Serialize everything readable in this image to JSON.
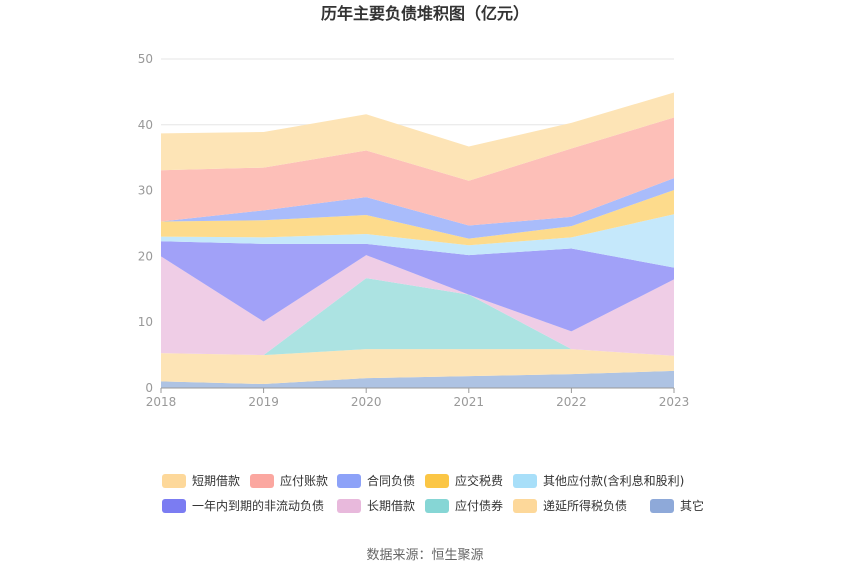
{
  "chart_data": {
    "type": "area",
    "stacked": true,
    "title": "历年主要负债堆积图（亿元）",
    "x": [
      "2018",
      "2019",
      "2020",
      "2021",
      "2022",
      "2023"
    ],
    "ylim": [
      0,
      50
    ],
    "yticks": [
      "0",
      "10",
      "20",
      "30",
      "40",
      "50"
    ],
    "grid": true,
    "legend_position": "bottom",
    "series": [
      {
        "name": "其它",
        "color": "#aec3e3",
        "values": [
          1.0,
          0.6,
          1.5,
          1.8,
          2.1,
          2.6
        ]
      },
      {
        "name": "递延所得税负债",
        "color": "#fde4b6",
        "values": [
          4.3,
          4.4,
          4.4,
          4.1,
          3.8,
          2.3
        ]
      },
      {
        "name": "应付债券",
        "color": "#ace3e2",
        "values": [
          0.0,
          0.0,
          10.8,
          8.3,
          0.0,
          0.0
        ]
      },
      {
        "name": "长期借款",
        "color": "#efcde6",
        "values": [
          14.7,
          5.1,
          3.5,
          0.0,
          2.7,
          11.6
        ]
      },
      {
        "name": "一年内到期的非流动负债",
        "color": "#a1a1f8",
        "values": [
          2.3,
          11.8,
          1.7,
          6.0,
          12.6,
          1.8
        ]
      },
      {
        "name": "其他应付款(含利息和股利)",
        "color": "#c5e8fb",
        "values": [
          0.7,
          1.0,
          1.5,
          1.5,
          1.7,
          8.1
        ]
      },
      {
        "name": "应交税费",
        "color": "#fddb8c",
        "values": [
          2.3,
          2.6,
          2.9,
          1.0,
          1.7,
          3.7
        ]
      },
      {
        "name": "合同负债",
        "color": "#a9bcfb",
        "values": [
          0.0,
          1.5,
          2.7,
          2.0,
          1.4,
          1.8
        ]
      },
      {
        "name": "应付账款",
        "color": "#fdbfb8",
        "values": [
          7.8,
          6.5,
          7.1,
          6.8,
          10.4,
          9.2
        ]
      },
      {
        "name": "短期借款",
        "color": "#fde4b6",
        "values": [
          5.6,
          5.4,
          5.5,
          5.2,
          3.9,
          3.8
        ]
      }
    ],
    "legend": [
      {
        "name": "短期借款",
        "color": "#fdd89a"
      },
      {
        "name": "应付账款",
        "color": "#fba7a0"
      },
      {
        "name": "合同负债",
        "color": "#8da2f8"
      },
      {
        "name": "应交税费",
        "color": "#fbc645"
      },
      {
        "name": "其他应付款(含利息和股利)",
        "color": "#a8dff9"
      },
      {
        "name": "一年内到期的非流动负债",
        "color": "#7b7cf2"
      },
      {
        "name": "长期借款",
        "color": "#e8b9dc"
      },
      {
        "name": "应付债券",
        "color": "#86d6d5"
      },
      {
        "name": "递延所得税负债",
        "color": "#fdd89a"
      },
      {
        "name": "其它",
        "color": "#8ea9d9"
      }
    ]
  },
  "source_text": "数据来源：恒生聚源"
}
